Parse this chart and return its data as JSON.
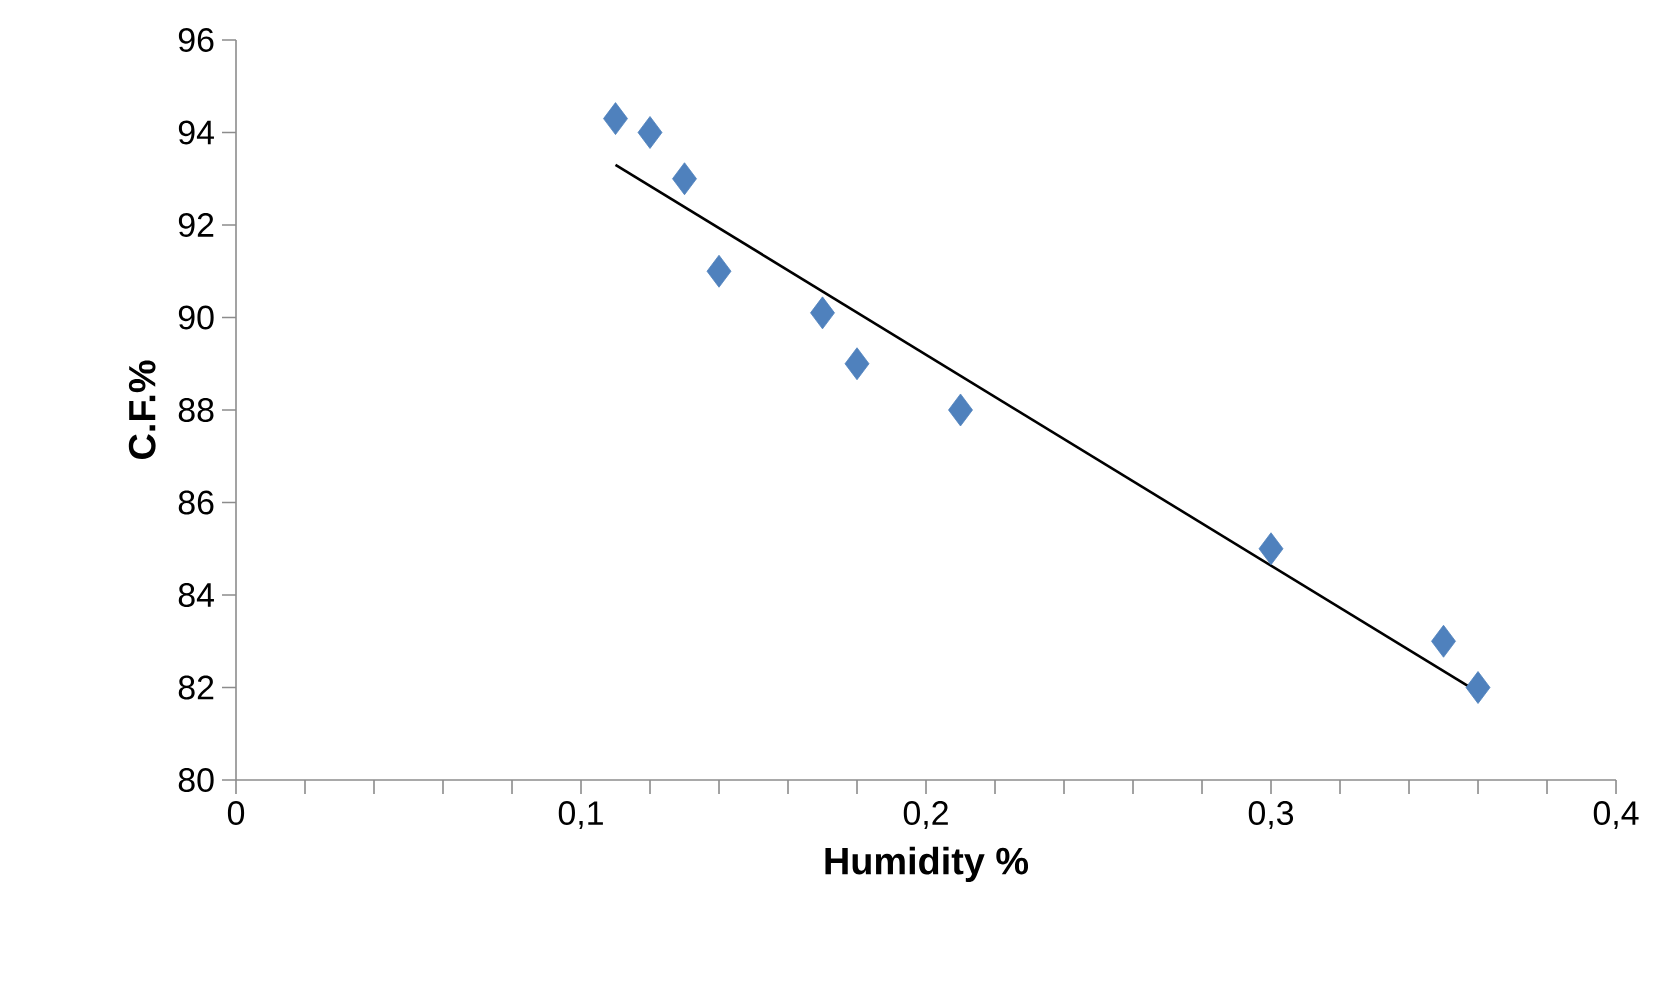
{
  "chart_data": {
    "type": "scatter",
    "xlabel": "Humidity %",
    "ylabel": "C.F.%",
    "marker": "diamond",
    "xlim": [
      0,
      0.4
    ],
    "ylim": [
      80,
      96
    ],
    "xticks": [
      0,
      {
        "value": 0.02,
        "label": null
      },
      {
        "value": 0.04,
        "label": null
      },
      {
        "value": 0.06,
        "label": null
      },
      {
        "value": 0.08,
        "label": null
      },
      {
        "value": 0.1,
        "label": "0,1"
      },
      {
        "value": 0.12,
        "label": null
      },
      {
        "value": 0.14,
        "label": null
      },
      {
        "value": 0.16,
        "label": null
      },
      {
        "value": 0.18,
        "label": null
      },
      {
        "value": 0.2,
        "label": "0,2"
      },
      {
        "value": 0.22,
        "label": null
      },
      {
        "value": 0.24,
        "label": null
      },
      {
        "value": 0.26,
        "label": null
      },
      {
        "value": 0.28,
        "label": null
      },
      {
        "value": 0.3,
        "label": "0,3"
      },
      {
        "value": 0.32,
        "label": null
      },
      {
        "value": 0.34,
        "label": null
      },
      {
        "value": 0.36,
        "label": null
      },
      {
        "value": 0.38,
        "label": null
      },
      {
        "value": 0.4,
        "label": "0,4"
      }
    ],
    "yticks": [
      80,
      82,
      84,
      86,
      88,
      90,
      92,
      94,
      96
    ],
    "series": [
      {
        "color": "#4f81bd",
        "x": [
          0.11,
          0.12,
          0.13,
          0.14,
          0.17,
          0.18,
          0.21,
          0.3,
          0.35,
          0.36
        ],
        "values": [
          94.3,
          94.0,
          93.0,
          91.0,
          90.1,
          89.0,
          88.0,
          85.0,
          83.0,
          82.0
        ]
      },
      {
        "type": "line",
        "color": "#000000",
        "marker": "none",
        "x": [
          0.11,
          0.36
        ],
        "values": [
          93.3,
          81.9
        ]
      }
    ]
  }
}
